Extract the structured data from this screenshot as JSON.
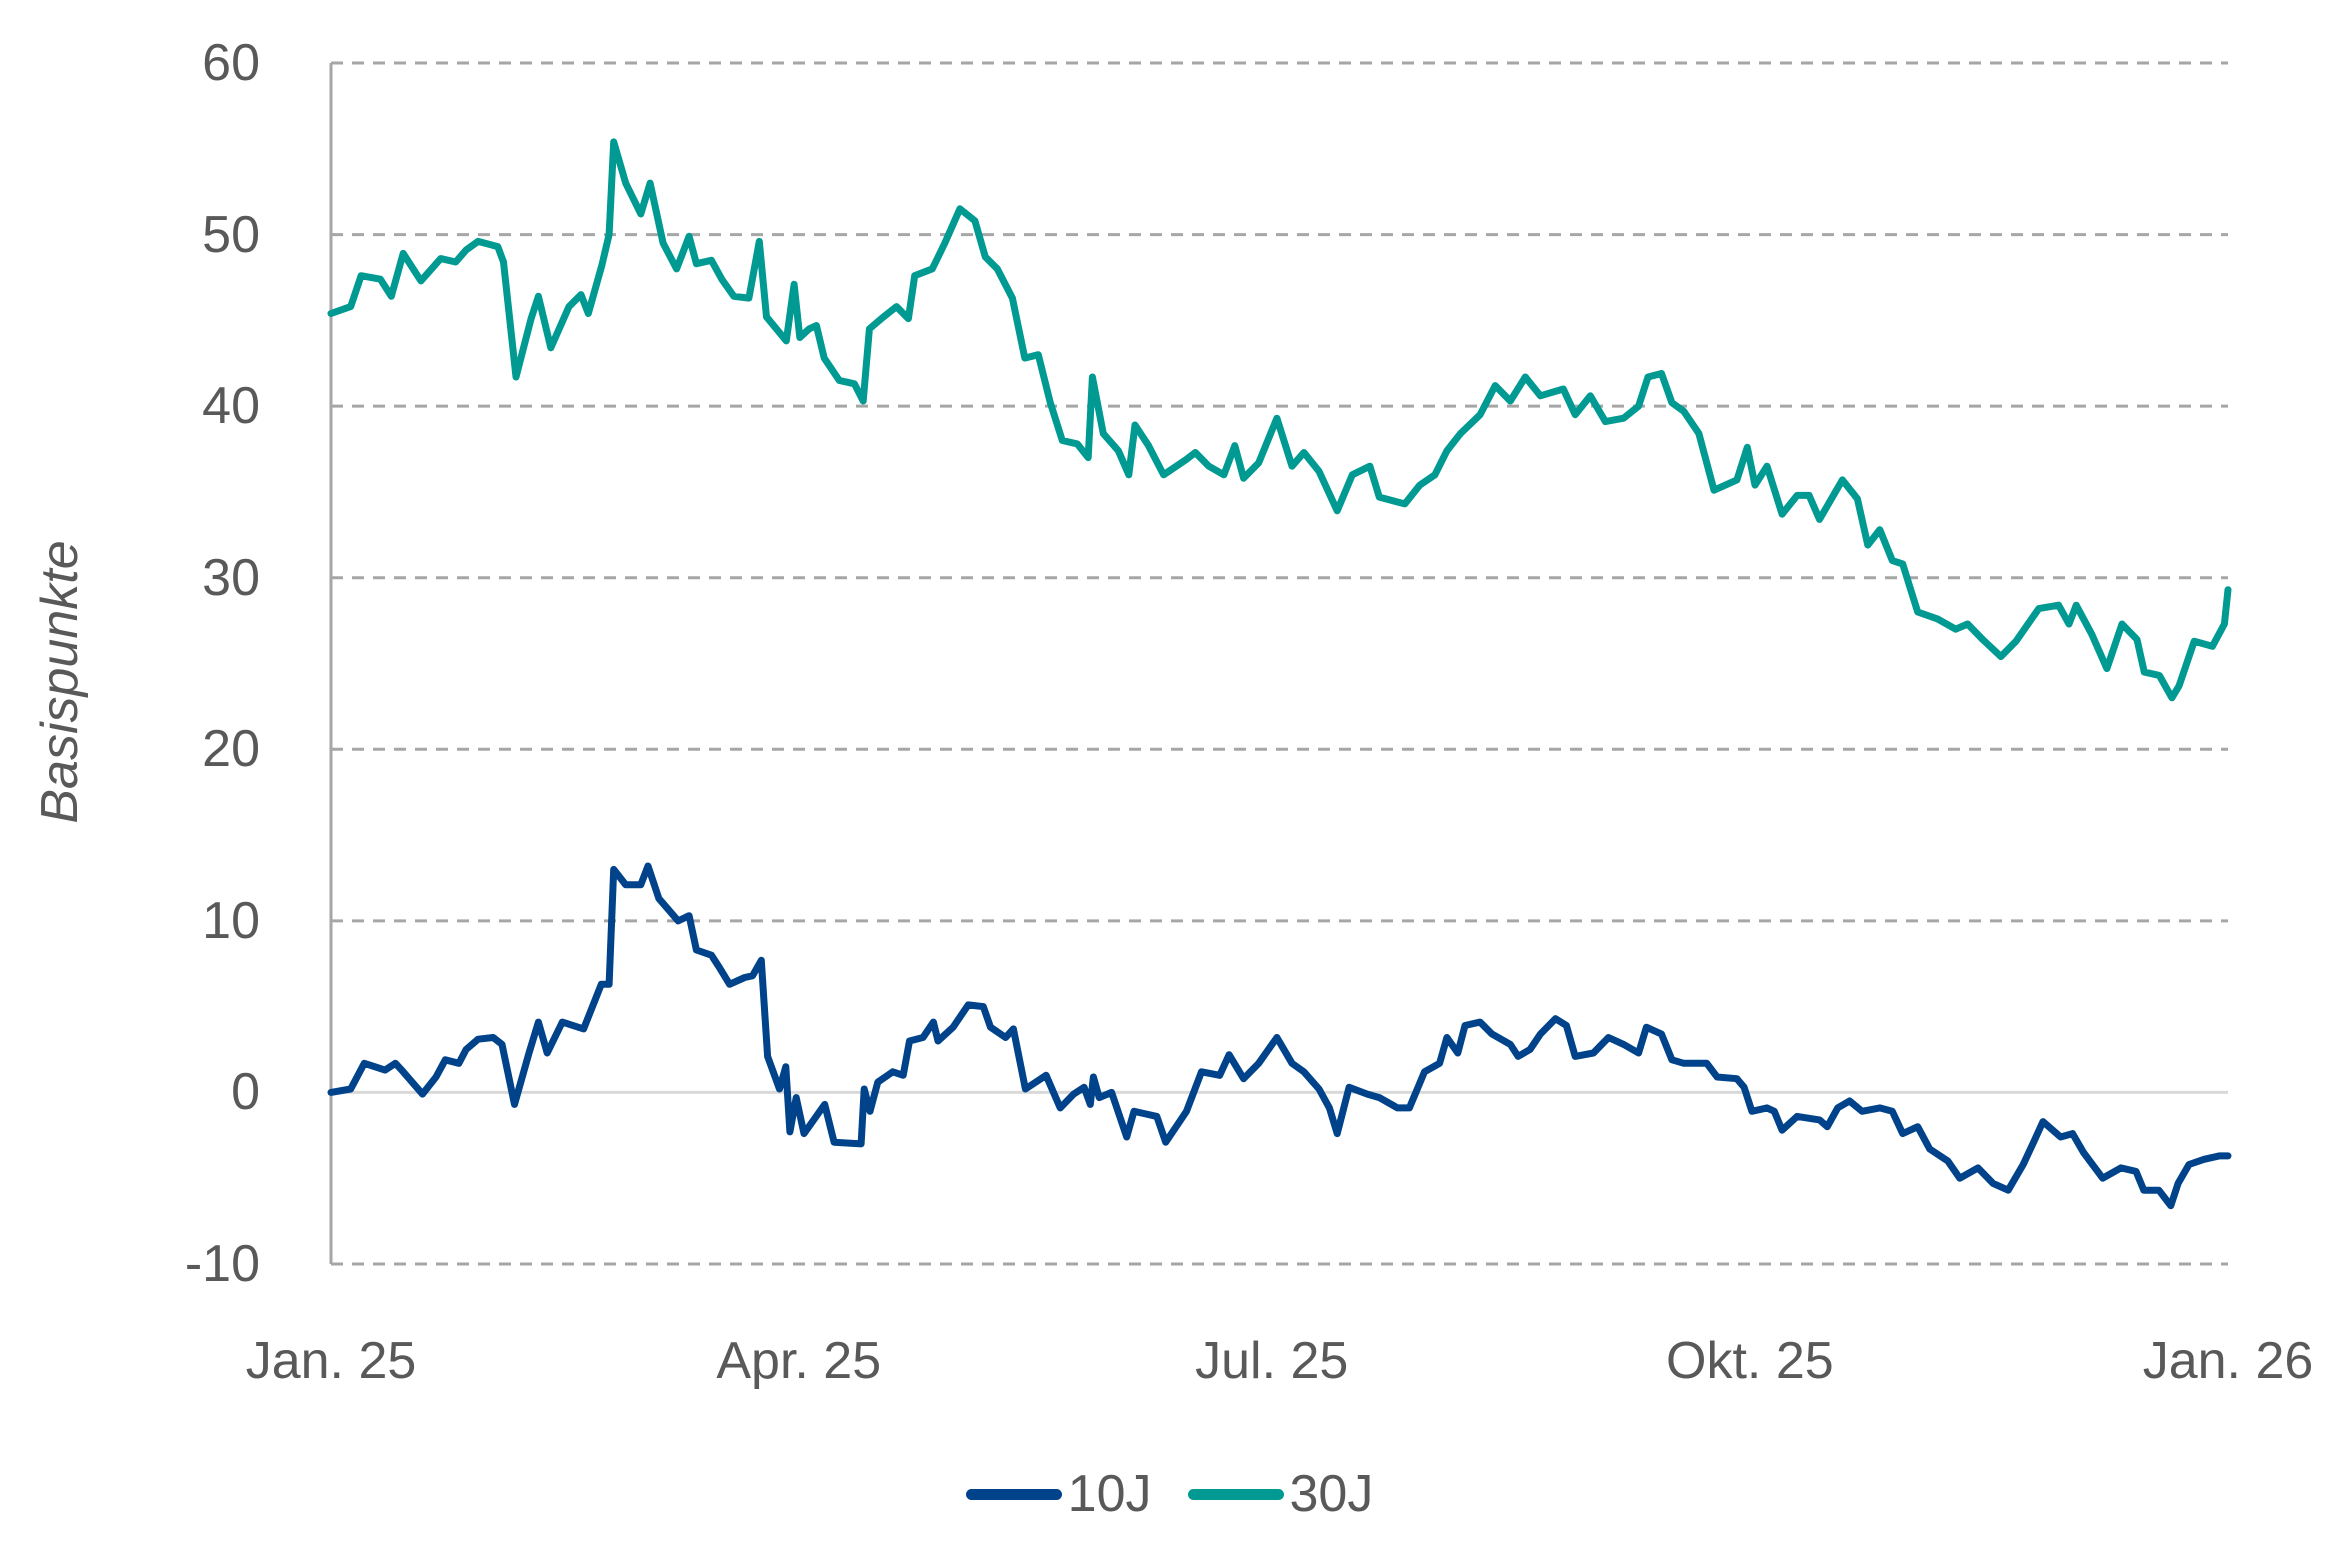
{
  "chart_data": {
    "type": "line",
    "title": "",
    "xlabel": "",
    "ylabel": "Basispunkte",
    "ylim": [
      -10,
      60
    ],
    "yticks": [
      60,
      50,
      40,
      30,
      20,
      10,
      0,
      -10
    ],
    "xlim_days": [
      0,
      365
    ],
    "xticks": [
      {
        "label": "Jan. 25",
        "day": 0
      },
      {
        "label": "Apr. 25",
        "day": 90
      },
      {
        "label": "Jul. 25",
        "day": 181
      },
      {
        "label": "Okt. 25",
        "day": 273
      },
      {
        "label": "Jan. 26",
        "day": 365
      }
    ],
    "grid": {
      "horizontal": true,
      "style": "dashed",
      "color": "#A6A6A6"
    },
    "zero_line_color": "#D9D9D9",
    "legend_position": "bottom",
    "series": [
      {
        "name": "10J",
        "color": "#00438A",
        "points": [
          [
            0,
            0
          ],
          [
            3.8,
            0.2
          ],
          [
            6.4,
            1.7
          ],
          [
            10.4,
            1.3
          ],
          [
            12.4,
            1.7
          ],
          [
            13.9,
            1.2
          ],
          [
            17.6,
            -0.1
          ],
          [
            20.2,
            0.9
          ],
          [
            22,
            1.9
          ],
          [
            24.6,
            1.7
          ],
          [
            26,
            2.5
          ],
          [
            28.3,
            3.1
          ],
          [
            31.2,
            3.2
          ],
          [
            32.9,
            2.8
          ],
          [
            35.3,
            -0.7
          ],
          [
            38.1,
            2.3
          ],
          [
            39.9,
            4.1
          ],
          [
            41.6,
            2.3
          ],
          [
            44.5,
            4.1
          ],
          [
            48.6,
            3.7
          ],
          [
            52,
            6.3
          ],
          [
            53.5,
            6.3
          ],
          [
            54.4,
            13
          ],
          [
            56.7,
            12.1
          ],
          [
            59.6,
            12.1
          ],
          [
            61,
            13.2
          ],
          [
            63.1,
            11.3
          ],
          [
            66.8,
            10
          ],
          [
            68.9,
            10.3
          ],
          [
            70.3,
            8.3
          ],
          [
            73.2,
            8
          ],
          [
            74.7,
            7.3
          ],
          [
            76.7,
            6.3
          ],
          [
            79.6,
            6.7
          ],
          [
            81.1,
            6.8
          ],
          [
            82.8,
            7.7
          ],
          [
            84,
            2.1
          ],
          [
            86.3,
            0.2
          ],
          [
            87.5,
            1.5
          ],
          [
            88.3,
            -2.3
          ],
          [
            89.5,
            -0.3
          ],
          [
            91,
            -2.4
          ],
          [
            95,
            -0.7
          ],
          [
            96.8,
            -2.9
          ],
          [
            102,
            -3
          ],
          [
            102.6,
            0.2
          ],
          [
            103.7,
            -1.1
          ],
          [
            105.2,
            0.6
          ],
          [
            108.1,
            1.2
          ],
          [
            110.1,
            1
          ],
          [
            111.3,
            3
          ],
          [
            113.9,
            3.2
          ],
          [
            115.9,
            4.1
          ],
          [
            116.8,
            3
          ],
          [
            119.7,
            3.8
          ],
          [
            122.6,
            5.1
          ],
          [
            125.5,
            5
          ],
          [
            126.9,
            3.8
          ],
          [
            129.8,
            3.2
          ],
          [
            131.3,
            3.7
          ],
          [
            133.6,
            0.2
          ],
          [
            137.6,
            1
          ],
          [
            140.3,
            -0.9
          ],
          [
            142.9,
            -0.1
          ],
          [
            144.9,
            0.3
          ],
          [
            146.1,
            -0.7
          ],
          [
            146.7,
            0.9
          ],
          [
            147.8,
            -0.3
          ],
          [
            150.2,
            0
          ],
          [
            153.1,
            -2.6
          ],
          [
            154.5,
            -1.1
          ],
          [
            158.9,
            -1.4
          ],
          [
            160.6,
            -2.9
          ],
          [
            164.6,
            -1.1
          ],
          [
            167.5,
            1.2
          ],
          [
            171,
            1
          ],
          [
            172.8,
            2.2
          ],
          [
            175.6,
            0.8
          ],
          [
            178.5,
            1.7
          ],
          [
            182,
            3.2
          ],
          [
            184.9,
            1.7
          ],
          [
            187.2,
            1.2
          ],
          [
            190.1,
            0.2
          ],
          [
            192.1,
            -0.9
          ],
          [
            193.6,
            -2.4
          ],
          [
            195.9,
            0.3
          ],
          [
            199.4,
            -0.1
          ],
          [
            201.7,
            -0.3
          ],
          [
            205.2,
            -0.9
          ],
          [
            207.5,
            -0.9
          ],
          [
            210.4,
            1.2
          ],
          [
            213.3,
            1.7
          ],
          [
            214.7,
            3.2
          ],
          [
            216.8,
            2.3
          ],
          [
            218.2,
            3.9
          ],
          [
            221.1,
            4.1
          ],
          [
            223.4,
            3.4
          ],
          [
            226.9,
            2.8
          ],
          [
            228.4,
            2.1
          ],
          [
            230.7,
            2.5
          ],
          [
            232.7,
            3.4
          ],
          [
            235.6,
            4.3
          ],
          [
            237.7,
            3.9
          ],
          [
            239.4,
            2.1
          ],
          [
            242.9,
            2.3
          ],
          [
            245.8,
            3.2
          ],
          [
            248.7,
            2.8
          ],
          [
            251.6,
            2.3
          ],
          [
            253.1,
            3.8
          ],
          [
            256,
            3.4
          ],
          [
            258,
            1.9
          ],
          [
            260.3,
            1.7
          ],
          [
            264.7,
            1.7
          ],
          [
            266.7,
            0.9
          ],
          [
            270.5,
            0.8
          ],
          [
            271.9,
            0.3
          ],
          [
            273.4,
            -1.1
          ],
          [
            276.3,
            -0.9
          ],
          [
            277.7,
            -1.1
          ],
          [
            279.2,
            -2.2
          ],
          [
            282.1,
            -1.4
          ],
          [
            286.4,
            -1.6
          ],
          [
            287.9,
            -2
          ],
          [
            289.9,
            -0.9
          ],
          [
            292.2,
            -0.5
          ],
          [
            294.6,
            -1.1
          ],
          [
            298,
            -0.9
          ],
          [
            300.4,
            -1.1
          ],
          [
            302.4,
            -2.4
          ],
          [
            305.3,
            -2
          ],
          [
            307.6,
            -3.3
          ],
          [
            311.1,
            -4
          ],
          [
            313.4,
            -5
          ],
          [
            316.9,
            -4.4
          ],
          [
            319.8,
            -5.3
          ],
          [
            322.7,
            -5.7
          ],
          [
            325.6,
            -4.2
          ],
          [
            327.6,
            -2.9
          ],
          [
            329.4,
            -1.7
          ],
          [
            332.8,
            -2.6
          ],
          [
            335.1,
            -2.4
          ],
          [
            337.2,
            -3.5
          ],
          [
            340.9,
            -5
          ],
          [
            344.4,
            -4.4
          ],
          [
            347.3,
            -4.6
          ],
          [
            348.8,
            -5.7
          ],
          [
            351.7,
            -5.7
          ],
          [
            354,
            -6.6
          ],
          [
            355.4,
            -5.3
          ],
          [
            357.5,
            -4.2
          ],
          [
            360.4,
            -3.9
          ],
          [
            363.3,
            -3.7
          ],
          [
            365,
            -3.7
          ]
        ]
      },
      {
        "name": "30J",
        "color": "#009A92",
        "points": [
          [
            0,
            45.4
          ],
          [
            3.8,
            45.8
          ],
          [
            5.8,
            47.6
          ],
          [
            9.5,
            47.4
          ],
          [
            11.6,
            46.4
          ],
          [
            13.9,
            48.9
          ],
          [
            17.3,
            47.3
          ],
          [
            21.1,
            48.6
          ],
          [
            24,
            48.4
          ],
          [
            26,
            49.1
          ],
          [
            28.3,
            49.6
          ],
          [
            32.1,
            49.3
          ],
          [
            33.2,
            48.4
          ],
          [
            35.6,
            41.7
          ],
          [
            38.5,
            45.1
          ],
          [
            39.9,
            46.4
          ],
          [
            42.3,
            43.4
          ],
          [
            45.8,
            45.8
          ],
          [
            48.1,
            46.5
          ],
          [
            49.5,
            45.4
          ],
          [
            52.1,
            48.2
          ],
          [
            53.5,
            50
          ],
          [
            54.4,
            55.4
          ],
          [
            56.7,
            53
          ],
          [
            59.6,
            51.2
          ],
          [
            61.4,
            53
          ],
          [
            63.9,
            49.5
          ],
          [
            66.5,
            48
          ],
          [
            68.9,
            49.9
          ],
          [
            70.3,
            48.3
          ],
          [
            73.2,
            48.5
          ],
          [
            75.2,
            47.4
          ],
          [
            77.5,
            46.4
          ],
          [
            80.4,
            46.3
          ],
          [
            82.4,
            49.6
          ],
          [
            83.8,
            45.2
          ],
          [
            87.6,
            43.8
          ],
          [
            89.1,
            47.1
          ],
          [
            90.2,
            44
          ],
          [
            92,
            44.5
          ],
          [
            93.4,
            44.7
          ],
          [
            94.9,
            42.8
          ],
          [
            97.8,
            41.5
          ],
          [
            100.7,
            41.3
          ],
          [
            102.4,
            40.3
          ],
          [
            103.6,
            44.5
          ],
          [
            105.9,
            45.1
          ],
          [
            108.8,
            45.8
          ],
          [
            111.1,
            45.1
          ],
          [
            112.3,
            47.6
          ],
          [
            115.7,
            48
          ],
          [
            118.1,
            49.5
          ],
          [
            121,
            51.5
          ],
          [
            123.9,
            50.8
          ],
          [
            125.9,
            48.7
          ],
          [
            128.2,
            48
          ],
          [
            131.1,
            46.3
          ],
          [
            133.5,
            42.8
          ],
          [
            136.1,
            43
          ],
          [
            138.4,
            40.2
          ],
          [
            140.7,
            38
          ],
          [
            143.6,
            37.8
          ],
          [
            145.7,
            37
          ],
          [
            146.5,
            41.7
          ],
          [
            148.6,
            38.4
          ],
          [
            151.5,
            37.4
          ],
          [
            153.5,
            36
          ],
          [
            154.7,
            38.9
          ],
          [
            157.3,
            37.7
          ],
          [
            160.2,
            36
          ],
          [
            164.6,
            36.9
          ],
          [
            166.3,
            37.3
          ],
          [
            168.9,
            36.5
          ],
          [
            171.8,
            36
          ],
          [
            173.9,
            37.7
          ],
          [
            175.6,
            35.8
          ],
          [
            178.5,
            36.7
          ],
          [
            182,
            39.3
          ],
          [
            184.9,
            36.5
          ],
          [
            187.2,
            37.3
          ],
          [
            190.1,
            36.2
          ],
          [
            193.6,
            33.9
          ],
          [
            196.5,
            36
          ],
          [
            199.9,
            36.5
          ],
          [
            201.7,
            34.7
          ],
          [
            206.6,
            34.3
          ],
          [
            209.5,
            35.4
          ],
          [
            212.4,
            36
          ],
          [
            214.7,
            37.4
          ],
          [
            217.3,
            38.4
          ],
          [
            221.1,
            39.5
          ],
          [
            224,
            41.2
          ],
          [
            226.9,
            40.3
          ],
          [
            229.8,
            41.7
          ],
          [
            232.7,
            40.6
          ],
          [
            237.1,
            41
          ],
          [
            239.4,
            39.5
          ],
          [
            242.3,
            40.6
          ],
          [
            245.2,
            39.1
          ],
          [
            248.7,
            39.3
          ],
          [
            251.6,
            40
          ],
          [
            253.4,
            41.7
          ],
          [
            256,
            41.9
          ],
          [
            258,
            40.2
          ],
          [
            260.3,
            39.7
          ],
          [
            263.2,
            38.4
          ],
          [
            266.1,
            35.1
          ],
          [
            270.5,
            35.7
          ],
          [
            272.5,
            37.6
          ],
          [
            274,
            35.4
          ],
          [
            276.3,
            36.5
          ],
          [
            279.2,
            33.7
          ],
          [
            282.1,
            34.8
          ],
          [
            284.4,
            34.8
          ],
          [
            286.4,
            33.4
          ],
          [
            290.8,
            35.7
          ],
          [
            293.7,
            34.6
          ],
          [
            295.7,
            31.9
          ],
          [
            298,
            32.8
          ],
          [
            300.4,
            31
          ],
          [
            302.4,
            30.8
          ],
          [
            305.3,
            28
          ],
          [
            309.1,
            27.6
          ],
          [
            312.6,
            27
          ],
          [
            314.9,
            27.3
          ],
          [
            317.8,
            26.4
          ],
          [
            321.3,
            25.4
          ],
          [
            324.2,
            26.3
          ],
          [
            328.6,
            28.2
          ],
          [
            332.4,
            28.4
          ],
          [
            334.4,
            27.3
          ],
          [
            335.8,
            28.4
          ],
          [
            338.8,
            26.7
          ],
          [
            341.7,
            24.7
          ],
          [
            344.6,
            27.3
          ],
          [
            347.5,
            26.4
          ],
          [
            348.9,
            24.5
          ],
          [
            351.8,
            24.3
          ],
          [
            354.2,
            23
          ],
          [
            355.6,
            23.7
          ],
          [
            358.5,
            26.3
          ],
          [
            362,
            26
          ],
          [
            364.3,
            27.3
          ],
          [
            365,
            29.3
          ]
        ]
      }
    ]
  },
  "axis": {
    "ylabel": "Basispunkte",
    "yticks": [
      "60",
      "50",
      "40",
      "30",
      "20",
      "10",
      "0",
      "-10"
    ],
    "xticks": [
      "Jan. 25",
      "Apr. 25",
      "Jul. 25",
      "Okt. 25",
      "Jan. 26"
    ]
  },
  "legend": {
    "items": [
      {
        "label": "10J",
        "color": "#00438A"
      },
      {
        "label": "30J",
        "color": "#009A92"
      }
    ]
  }
}
